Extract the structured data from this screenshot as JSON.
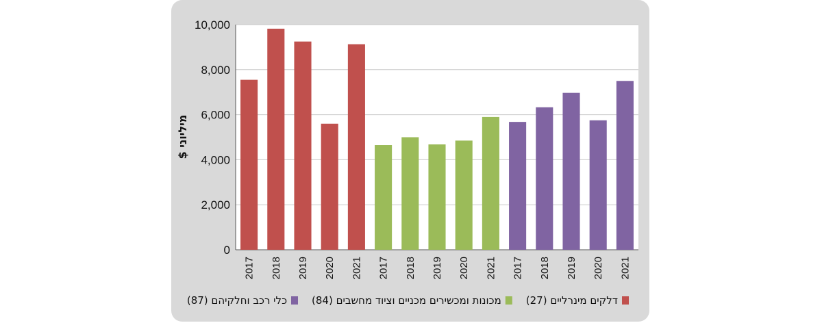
{
  "chart_data": {
    "type": "bar",
    "ylabel": "מיליוני $",
    "ylim": [
      0,
      10000
    ],
    "yticks": [
      "0",
      "2,000",
      "4,000",
      "6,000",
      "8,000",
      "10,000"
    ],
    "grid": true,
    "legend_position": "bottom",
    "groups": [
      {
        "name": "דלקים מינרליים (27)",
        "color": "#c0504d",
        "categories": [
          "2017",
          "2018",
          "2019",
          "2020",
          "2021"
        ],
        "values": [
          7550,
          9820,
          9250,
          5600,
          9130
        ]
      },
      {
        "name": "מכונות ומכשירים מכניים וציוד מחשבים (84)",
        "color": "#9bbb59",
        "categories": [
          "2017",
          "2018",
          "2019",
          "2020",
          "2021"
        ],
        "values": [
          4650,
          5000,
          4680,
          4850,
          5900
        ]
      },
      {
        "name": "כלי רכב וחלקיהם (87)",
        "color": "#8064a2",
        "categories": [
          "2017",
          "2018",
          "2019",
          "2020",
          "2021"
        ],
        "values": [
          5680,
          6330,
          6970,
          5750,
          7500
        ]
      }
    ]
  }
}
